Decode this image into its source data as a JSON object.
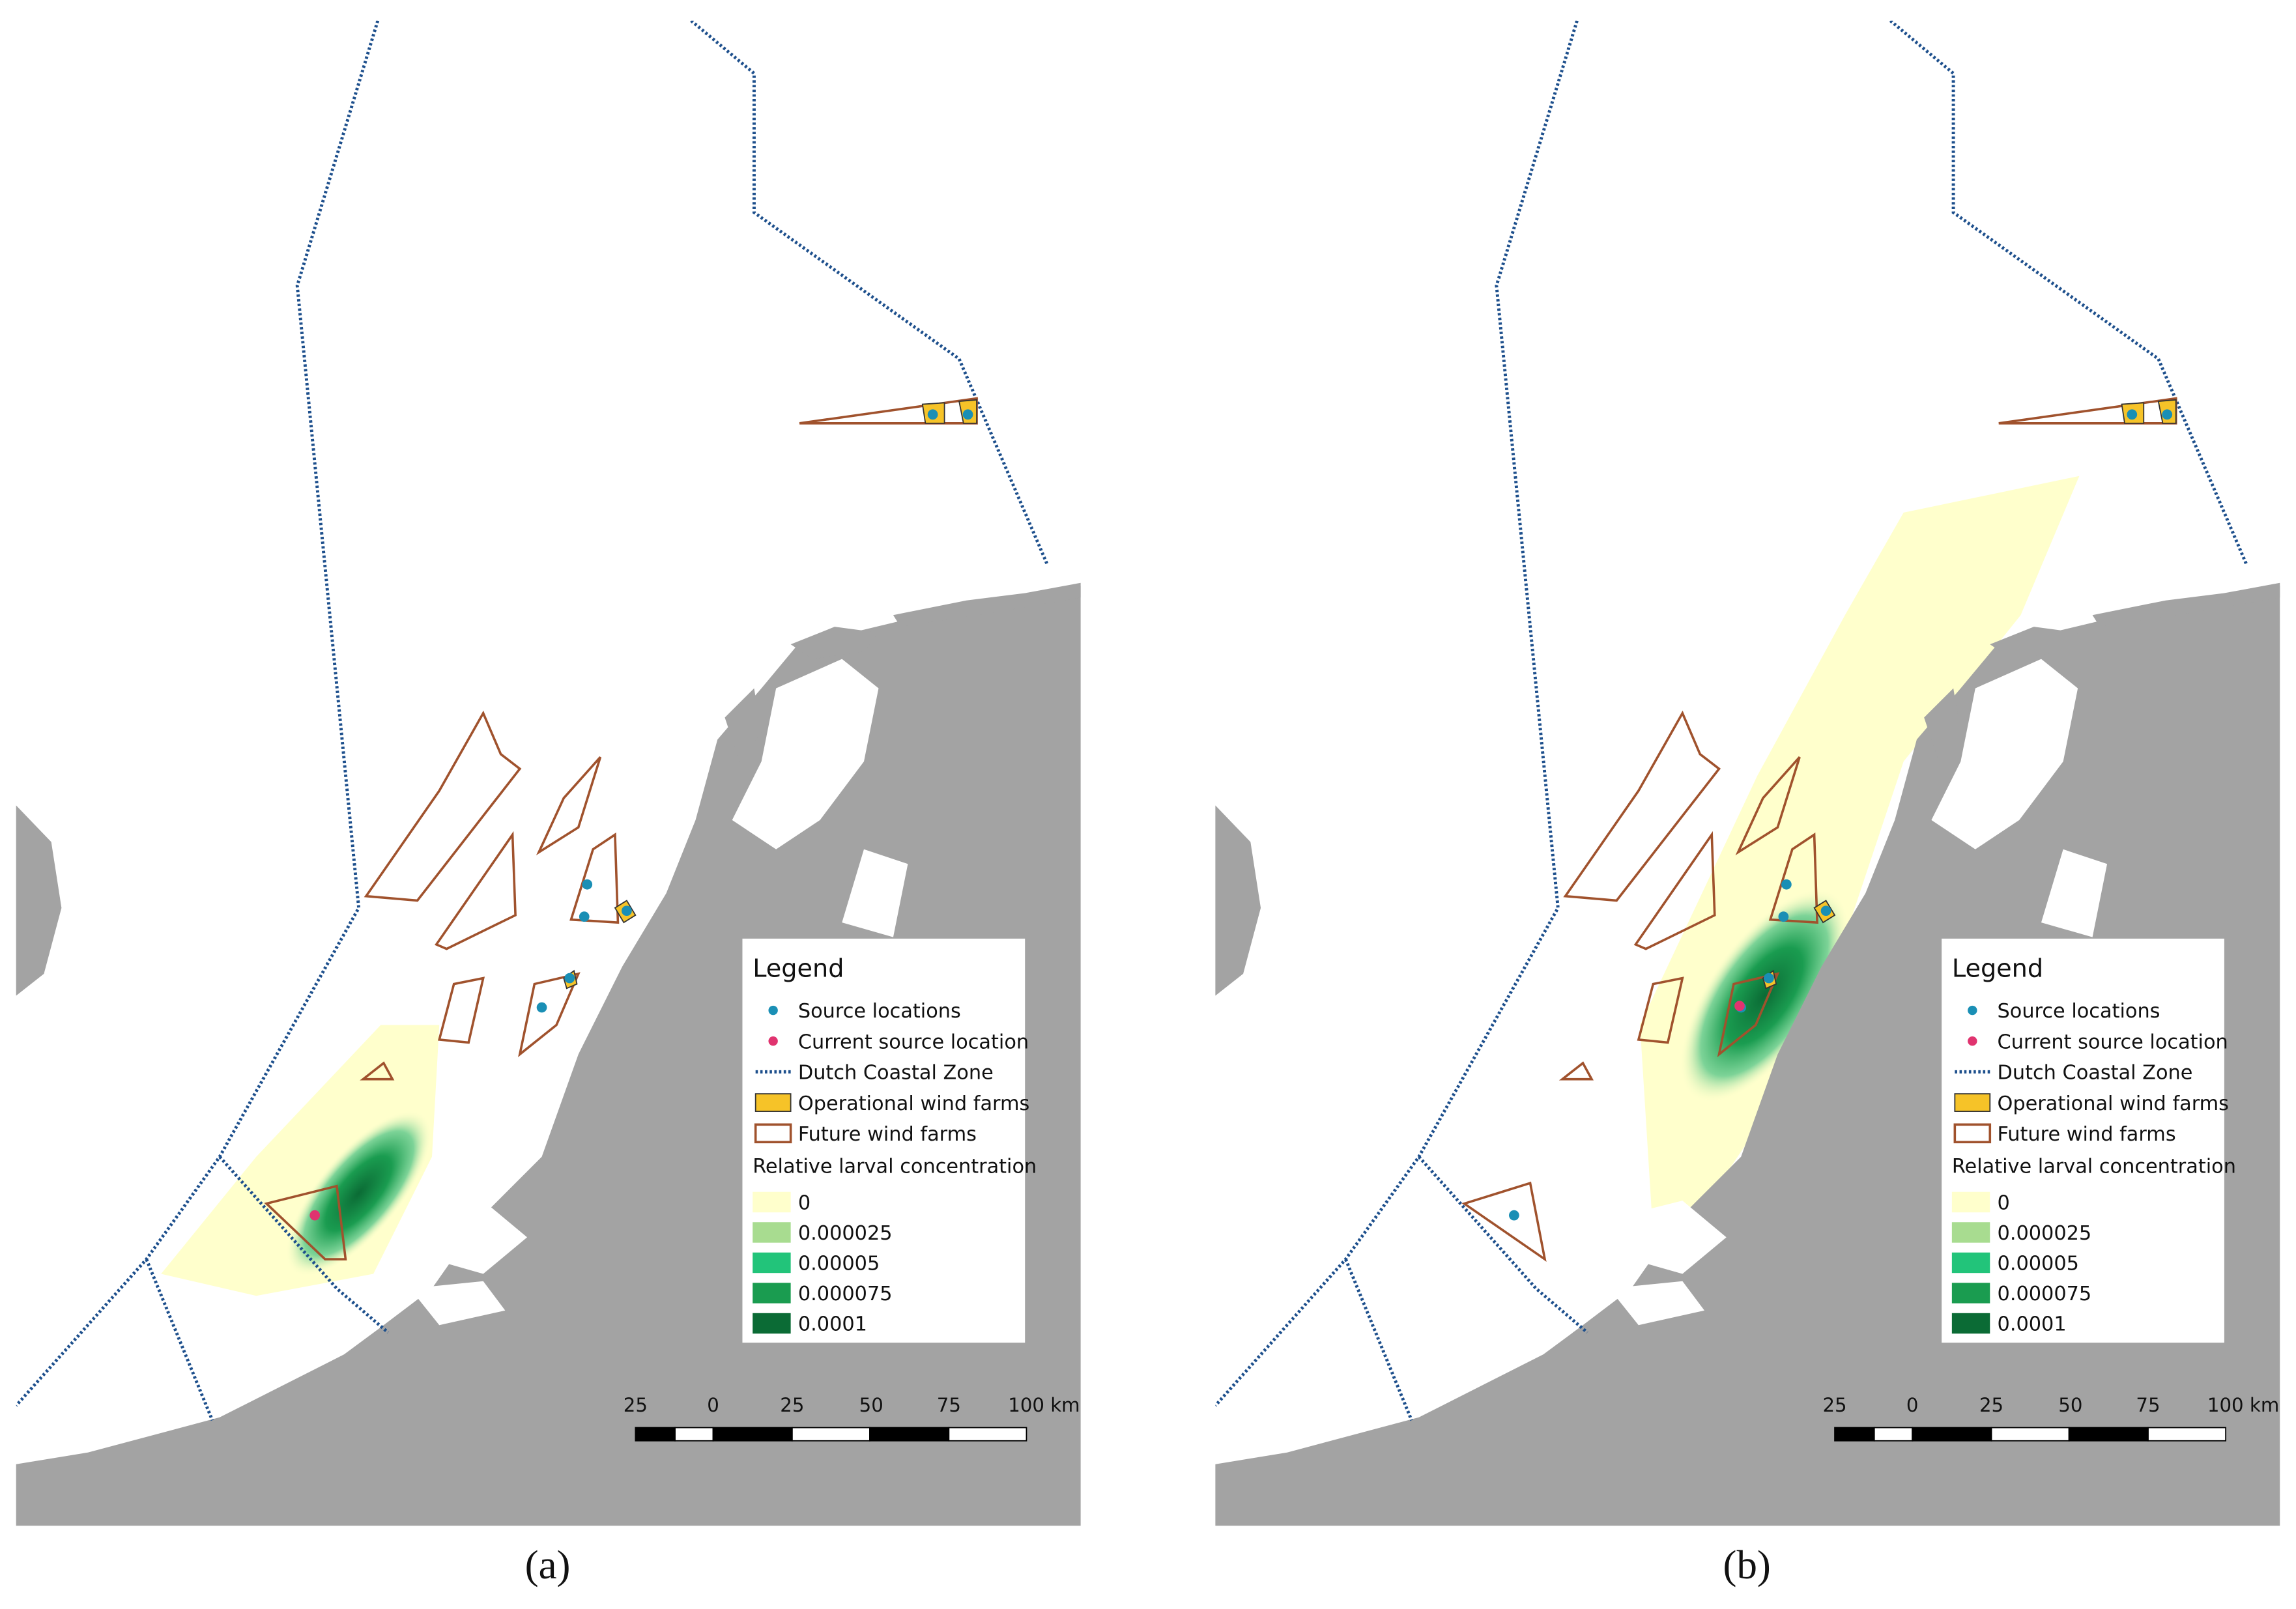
{
  "panels": [
    {
      "caption": "(a)",
      "legend": {
        "title": "Legend",
        "items": [
          "Source locations",
          "Current source location",
          "Dutch Coastal Zone",
          "Operational wind farms",
          "Future wind farms"
        ],
        "scale_title": "Relative larval concentration",
        "scale_labels": [
          "0",
          "0.000025",
          "0.00005",
          "0.000075",
          "0.0001"
        ]
      },
      "scale_bar": [
        "25",
        "0",
        "25",
        "50",
        "75",
        "100 km"
      ]
    },
    {
      "caption": "(b)",
      "legend": {
        "title": "Legend",
        "items": [
          "Source locations",
          "Current source location",
          "Dutch Coastal Zone",
          "Operational wind farms",
          "Future wind farms"
        ],
        "scale_title": "Relative larval concentration",
        "scale_labels": [
          "0",
          "0.000025",
          "0.00005",
          "0.000075",
          "0.0001"
        ]
      },
      "scale_bar": [
        "25",
        "0",
        "25",
        "50",
        "75",
        "100 km"
      ]
    }
  ]
}
